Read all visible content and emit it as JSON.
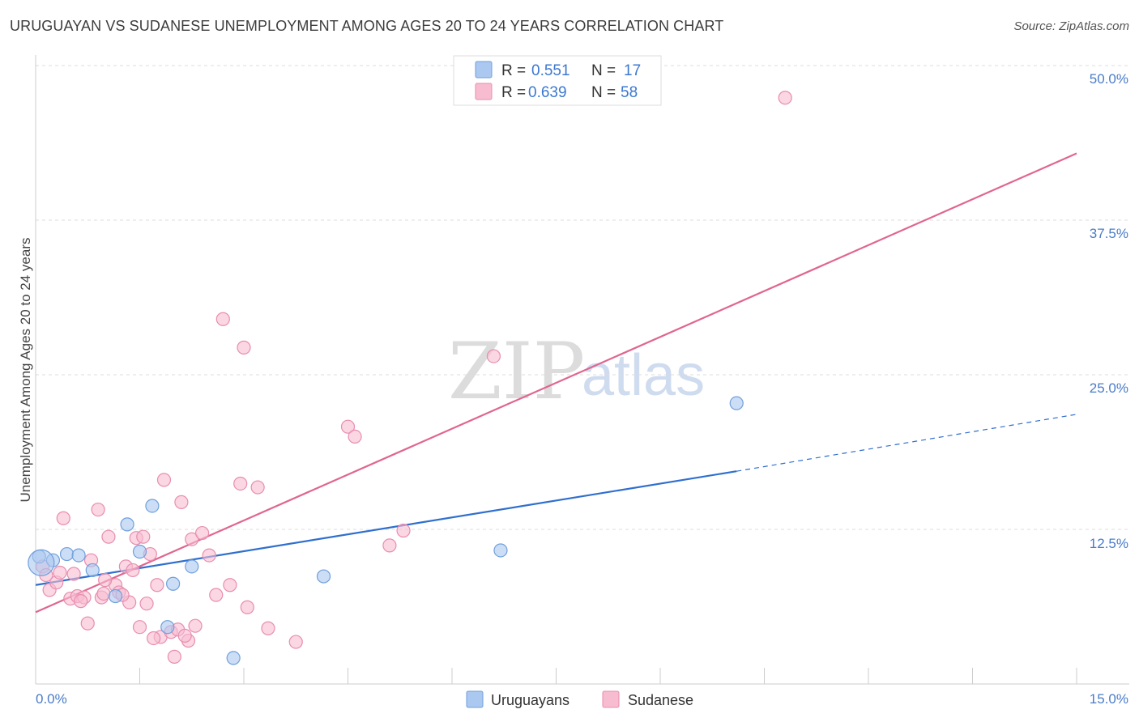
{
  "title": "URUGUAYAN VS SUDANESE UNEMPLOYMENT AMONG AGES 20 TO 24 YEARS CORRELATION CHART",
  "source": "Source: ZipAtlas.com",
  "watermark": {
    "zip": "ZIP",
    "atlas": "atlas"
  },
  "colors": {
    "uruguayans_fill": "#aac8f0",
    "uruguayans_stroke": "#6f9fdc",
    "uruguayans_line": "#2f6fce",
    "sudanese_fill": "#f7bcd0",
    "sudanese_stroke": "#e98daf",
    "sudanese_line": "#e0668f",
    "axis_text": "#4a7cc9",
    "grid": "#dddddd"
  },
  "legend": {
    "r_label": "R =",
    "n_label": "N =",
    "rows": [
      {
        "series": "Uruguayans",
        "r": "0.551",
        "n": "17"
      },
      {
        "series": "Sudanese",
        "r": "0.639",
        "n": "58"
      }
    ]
  },
  "chart_data": {
    "type": "scatter",
    "title": "URUGUAYAN VS SUDANESE UNEMPLOYMENT AMONG AGES 20 TO 24 YEARS CORRELATION CHART",
    "xlabel": "",
    "ylabel": "Unemployment Among Ages 20 to 24 years",
    "xlim": [
      0,
      15
    ],
    "ylim": [
      0,
      50
    ],
    "x_tick_labels": [
      "0.0%",
      "15.0%"
    ],
    "y_ticks": [
      12.5,
      25.0,
      37.5,
      50.0
    ],
    "y_tick_labels": [
      "12.5%",
      "25.0%",
      "37.5%",
      "50.0%"
    ],
    "grid": true,
    "legend_position": "top-center",
    "series": [
      {
        "name": "Uruguayans",
        "x": [
          0.05,
          0.25,
          0.45,
          0.62,
          0.82,
          1.15,
          1.32,
          1.5,
          1.68,
          1.9,
          1.98,
          2.25,
          2.85,
          4.15,
          6.7,
          10.1,
          0.08
        ],
        "y": [
          10.3,
          10.0,
          10.5,
          10.4,
          9.2,
          7.1,
          12.9,
          10.7,
          14.4,
          4.6,
          8.1,
          9.5,
          2.1,
          8.7,
          10.8,
          22.7,
          9.8
        ],
        "trend": {
          "x0": 0,
          "y0": 8.0,
          "x1": 10.1,
          "y1": 17.2,
          "dashed_to_x": 15,
          "dashed_to_y": 21.8
        }
      },
      {
        "name": "Sudanese",
        "x": [
          0.1,
          0.15,
          0.2,
          0.3,
          0.35,
          0.4,
          0.5,
          0.55,
          0.6,
          0.7,
          0.75,
          0.8,
          0.9,
          0.95,
          0.98,
          1.05,
          1.15,
          1.2,
          1.3,
          1.35,
          1.45,
          1.5,
          1.55,
          1.6,
          1.65,
          1.75,
          1.8,
          1.85,
          1.95,
          2.0,
          2.05,
          2.1,
          2.2,
          2.25,
          2.3,
          2.4,
          2.6,
          2.7,
          2.8,
          2.95,
          3.0,
          3.2,
          3.35,
          3.75,
          4.5,
          4.6,
          5.1,
          5.3,
          6.6,
          10.8,
          2.15,
          1.0,
          1.25,
          0.65,
          2.5,
          3.05,
          1.7,
          1.4
        ],
        "y": [
          9.5,
          8.8,
          7.6,
          8.2,
          9.0,
          13.4,
          6.9,
          8.9,
          7.1,
          7.0,
          4.9,
          10.0,
          14.1,
          7.0,
          7.3,
          11.9,
          8.0,
          7.4,
          9.5,
          6.6,
          11.8,
          4.6,
          11.9,
          6.5,
          10.5,
          8.0,
          3.8,
          16.5,
          4.2,
          2.2,
          4.4,
          14.7,
          3.5,
          11.7,
          4.7,
          12.2,
          7.2,
          29.5,
          8.0,
          16.2,
          27.2,
          15.9,
          4.5,
          3.4,
          20.8,
          20.0,
          11.2,
          12.4,
          26.5,
          47.4,
          3.9,
          8.4,
          7.2,
          6.7,
          10.4,
          6.2,
          3.7,
          9.2
        ],
        "trend": {
          "x0": 0,
          "y0": 5.8,
          "x1": 15,
          "y1": 42.9
        }
      }
    ]
  }
}
